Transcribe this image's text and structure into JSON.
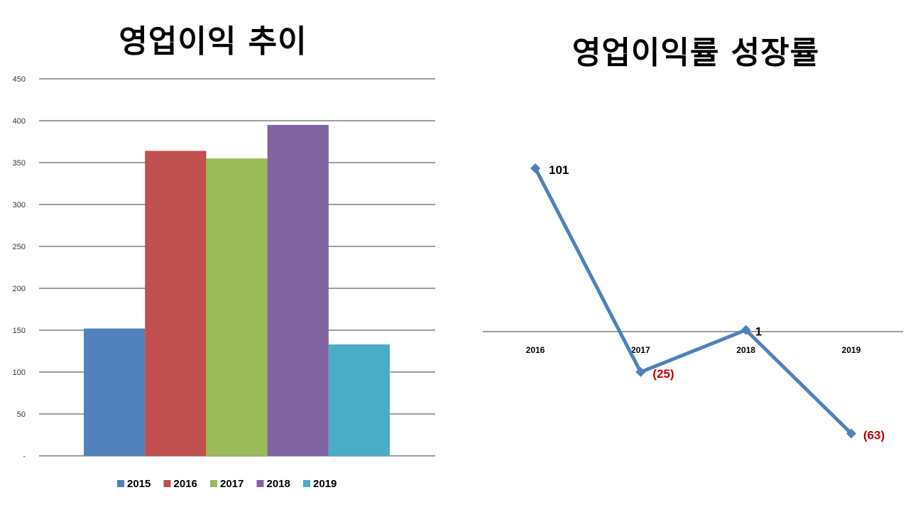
{
  "chart_data": [
    {
      "type": "bar",
      "title": "영업이익 추이",
      "xlabel": "",
      "ylabel": "",
      "ylim": [
        0,
        450
      ],
      "yticks": [
        0,
        50,
        100,
        150,
        200,
        250,
        300,
        350,
        400,
        450
      ],
      "ytick_labels": [
        "-",
        "50",
        "100",
        "150",
        "200",
        "250",
        "300",
        "350",
        "400",
        "450"
      ],
      "grid": true,
      "legend": "bottom",
      "series": [
        {
          "name": "2015",
          "value": 152,
          "color": "#4F81BD"
        },
        {
          "name": "2016",
          "value": 364,
          "color": "#C0504D"
        },
        {
          "name": "2017",
          "value": 355,
          "color": "#9BBB59"
        },
        {
          "name": "2018",
          "value": 395,
          "color": "#8064A2"
        },
        {
          "name": "2019",
          "value": 133,
          "color": "#4BACC6"
        }
      ]
    },
    {
      "type": "line",
      "title": "영업이익률 성장률",
      "xlabel": "",
      "ylabel": "",
      "grid": false,
      "color": "#4F81BD",
      "x": [
        "2016",
        "2017",
        "2018",
        "2019"
      ],
      "values": [
        101,
        -25,
        1,
        -63
      ],
      "labels": [
        "101",
        "(25)",
        "1",
        "(63)"
      ],
      "label_colors": [
        "#000000",
        "#C00000",
        "#000000",
        "#C00000"
      ]
    }
  ]
}
